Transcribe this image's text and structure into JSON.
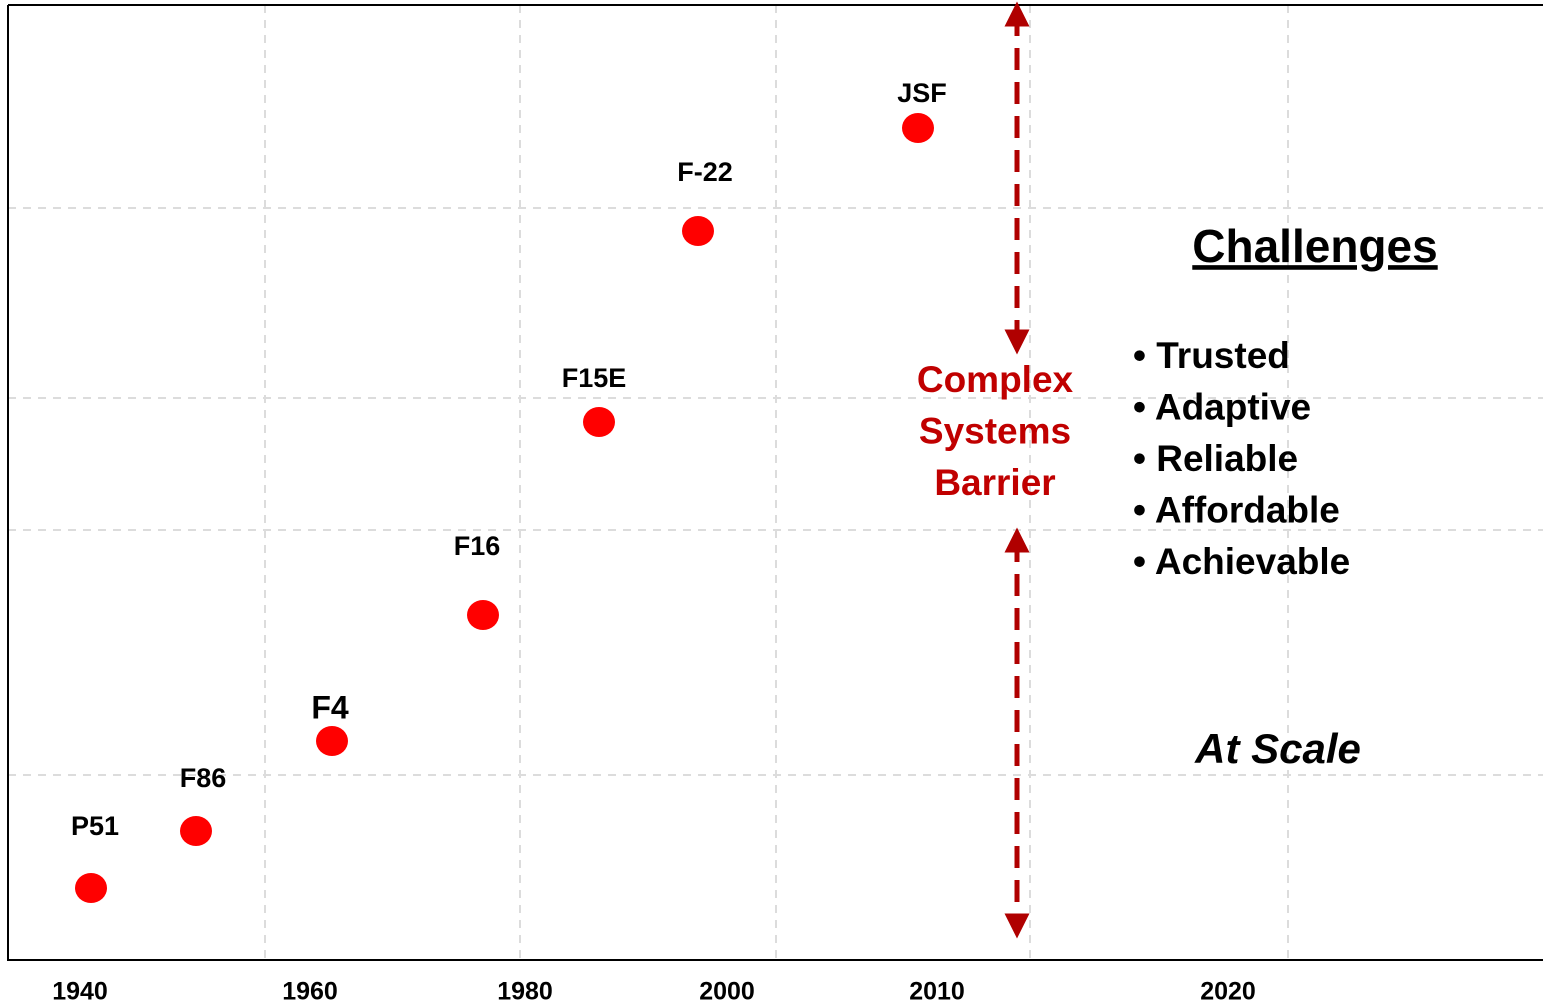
{
  "axis_labels": [
    "1940",
    "1960",
    "1980",
    "2000",
    "2010",
    "2020"
  ],
  "points": [
    {
      "label": "P51"
    },
    {
      "label": "F86"
    },
    {
      "label": "F4"
    },
    {
      "label": "F16"
    },
    {
      "label": "F15E"
    },
    {
      "label": "F-22"
    },
    {
      "label": "JSF"
    }
  ],
  "barrier": [
    "Complex",
    "Systems",
    "Barrier"
  ],
  "challenges": {
    "title": "Challenges",
    "items": [
      "• Trusted",
      "• Adaptive",
      "• Reliable",
      "• Affordable",
      "• Achievable"
    ]
  },
  "footer": "At Scale"
}
